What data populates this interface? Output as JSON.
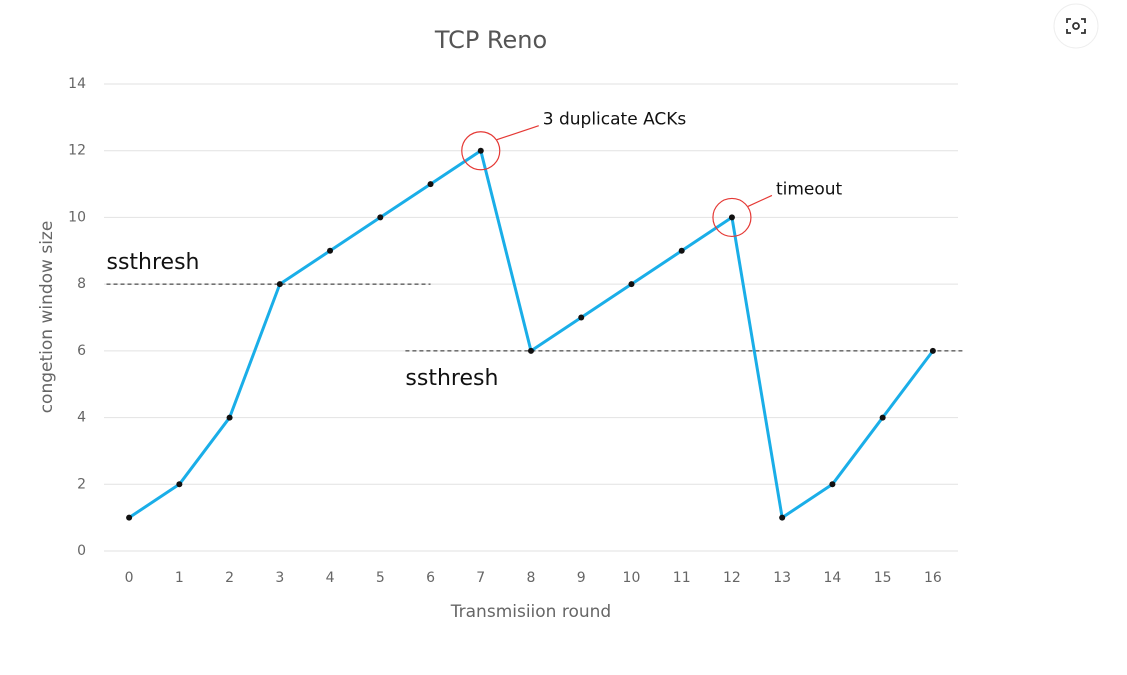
{
  "chart_data": {
    "type": "line",
    "title": "TCP Reno",
    "x_label": "Transmisiion round",
    "y_label": "congetion window size",
    "x": [
      0,
      1,
      2,
      3,
      4,
      5,
      6,
      7,
      8,
      9,
      10,
      11,
      12,
      13,
      14,
      15,
      16
    ],
    "values": [
      1,
      2,
      4,
      8,
      9,
      10,
      11,
      12,
      6,
      7,
      8,
      9,
      10,
      1,
      2,
      4,
      6
    ],
    "color": "#1aaee8",
    "xlim": [
      -0.5,
      16.5
    ],
    "xticks": [
      0,
      1,
      2,
      3,
      4,
      5,
      6,
      7,
      8,
      9,
      10,
      11,
      12,
      13,
      14,
      15,
      16
    ],
    "ylim": [
      0,
      14
    ],
    "yticks": [
      0,
      2,
      4,
      6,
      8,
      10,
      12,
      14
    ],
    "grid": true,
    "thresholds": [
      {
        "label": "ssthresh",
        "value": 8,
        "x_range": [
          -0.45,
          6
        ]
      },
      {
        "label": "ssthresh",
        "value": 6,
        "x_range": [
          5.5,
          16.6
        ]
      }
    ],
    "annotations": [
      {
        "text": "3 duplicate ACKs",
        "x": 7,
        "y": 12
      },
      {
        "text": "timeout",
        "x": 12,
        "y": 10
      }
    ]
  }
}
